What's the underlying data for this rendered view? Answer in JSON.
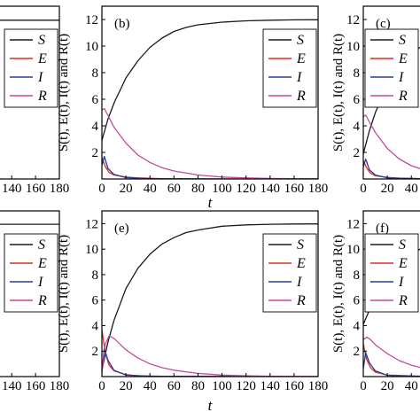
{
  "colors": {
    "S": "#1a1a1a",
    "E": "#d7301f",
    "I": "#2b3a9a",
    "R": "#c44a9a"
  },
  "legend_labels": [
    "S",
    "E",
    "I",
    "R"
  ],
  "chart_data": [
    {
      "id": "a",
      "type": "line",
      "panel_label": "",
      "partial": "left-cropped",
      "xlabel": "",
      "ylabel": "",
      "xlim": [
        0,
        180
      ],
      "ylim": [
        0,
        13
      ],
      "xticks": [
        140,
        160,
        180
      ],
      "yticks": [],
      "series": [
        {
          "name": "S",
          "x": [
            0,
            180
          ],
          "y": [
            11.95,
            11.95
          ]
        }
      ]
    },
    {
      "id": "b",
      "type": "line",
      "panel_label": "(b)",
      "xlabel": "t",
      "ylabel": "S(t), E(t), I(t) and R(t)",
      "xlim": [
        0,
        180
      ],
      "ylim": [
        0,
        13
      ],
      "xticks": [
        0,
        20,
        40,
        60,
        80,
        100,
        120,
        140,
        160,
        180
      ],
      "yticks": [
        2,
        4,
        6,
        8,
        10,
        12
      ],
      "series": [
        {
          "name": "S",
          "x": [
            0,
            5,
            10,
            20,
            30,
            40,
            50,
            60,
            70,
            80,
            100,
            120,
            140,
            160,
            180
          ],
          "y": [
            2.9,
            4.5,
            5.7,
            7.6,
            8.9,
            9.9,
            10.6,
            11.1,
            11.4,
            11.6,
            11.8,
            11.9,
            11.95,
            11.97,
            11.98
          ]
        },
        {
          "name": "E",
          "x": [
            0,
            3,
            6,
            10,
            20,
            30,
            50,
            80,
            120,
            180
          ],
          "y": [
            1.6,
            0.9,
            0.5,
            0.3,
            0.15,
            0.08,
            0.03,
            0.01,
            0.0,
            0.0
          ]
        },
        {
          "name": "I",
          "x": [
            0,
            2,
            5,
            10,
            20,
            40,
            80,
            180
          ],
          "y": [
            1.0,
            1.7,
            0.8,
            0.35,
            0.1,
            0.02,
            0.0,
            0.0
          ]
        },
        {
          "name": "R",
          "x": [
            0,
            2,
            5,
            10,
            20,
            30,
            40,
            50,
            60,
            80,
            100,
            120,
            140,
            160,
            180
          ],
          "y": [
            5.2,
            5.3,
            4.8,
            3.9,
            2.7,
            1.8,
            1.25,
            0.85,
            0.6,
            0.3,
            0.15,
            0.08,
            0.04,
            0.02,
            0.01
          ]
        }
      ]
    },
    {
      "id": "c",
      "type": "line",
      "panel_label": "(c)",
      "partial": "right-cropped",
      "xlabel": "",
      "ylabel": "S(t), E(t), I(t) and R(t)",
      "xlim": [
        0,
        180
      ],
      "ylim": [
        0,
        13
      ],
      "xticks": [
        0,
        20,
        40
      ],
      "yticks": [
        2,
        4,
        6,
        8,
        10,
        12
      ],
      "series": [
        {
          "name": "S",
          "x": [
            0,
            5,
            10,
            20,
            30,
            40,
            50
          ],
          "y": [
            1.9,
            3.6,
            5.0,
            7.0,
            8.4,
            9.4,
            10.1
          ]
        },
        {
          "name": "E",
          "x": [
            0,
            3,
            6,
            10,
            20,
            30,
            50
          ],
          "y": [
            1.4,
            0.8,
            0.45,
            0.25,
            0.12,
            0.06,
            0.02
          ]
        },
        {
          "name": "I",
          "x": [
            0,
            2,
            5,
            10,
            20,
            50
          ],
          "y": [
            0.9,
            1.5,
            0.7,
            0.3,
            0.08,
            0.01
          ]
        },
        {
          "name": "R",
          "x": [
            0,
            2,
            5,
            10,
            20,
            30,
            40,
            50
          ],
          "y": [
            4.7,
            4.8,
            4.3,
            3.5,
            2.3,
            1.5,
            1.0,
            0.7
          ]
        }
      ]
    },
    {
      "id": "d",
      "type": "line",
      "panel_label": "",
      "partial": "left-cropped",
      "xlabel": "",
      "ylabel": "",
      "xlim": [
        0,
        180
      ],
      "ylim": [
        0,
        13
      ],
      "xticks": [
        140,
        160,
        180
      ],
      "yticks": [],
      "series": [
        {
          "name": "S",
          "x": [
            0,
            180
          ],
          "y": [
            11.95,
            11.95
          ]
        }
      ]
    },
    {
      "id": "e",
      "type": "line",
      "panel_label": "(e)",
      "xlabel": "t",
      "ylabel": "S(t), E(t), I(t) and R(t)",
      "xlim": [
        0,
        180
      ],
      "ylim": [
        0,
        13
      ],
      "xticks": [
        0,
        20,
        40,
        60,
        80,
        100,
        120,
        140,
        160,
        180
      ],
      "yticks": [
        2,
        4,
        6,
        8,
        10,
        12
      ],
      "series": [
        {
          "name": "S",
          "x": [
            0,
            5,
            10,
            20,
            30,
            40,
            50,
            60,
            70,
            80,
            100,
            120,
            140,
            160,
            180
          ],
          "y": [
            0.5,
            2.7,
            4.4,
            6.9,
            8.5,
            9.6,
            10.4,
            10.9,
            11.3,
            11.5,
            11.8,
            11.9,
            11.95,
            11.97,
            11.98
          ]
        },
        {
          "name": "E",
          "x": [
            0,
            1,
            3,
            6,
            10,
            20,
            30,
            50,
            180
          ],
          "y": [
            3.7,
            3.0,
            1.8,
            0.9,
            0.45,
            0.15,
            0.06,
            0.02,
            0.0
          ]
        },
        {
          "name": "I",
          "x": [
            0,
            2,
            5,
            10,
            20,
            40,
            180
          ],
          "y": [
            0.4,
            2.2,
            1.3,
            0.5,
            0.12,
            0.02,
            0.0
          ]
        },
        {
          "name": "R",
          "x": [
            0,
            3,
            6,
            10,
            20,
            30,
            40,
            50,
            60,
            80,
            100,
            120,
            140,
            160,
            180
          ],
          "y": [
            0.3,
            2.6,
            3.2,
            3.0,
            2.1,
            1.45,
            1.0,
            0.7,
            0.5,
            0.25,
            0.12,
            0.06,
            0.03,
            0.01,
            0.0
          ]
        }
      ]
    },
    {
      "id": "f",
      "type": "line",
      "panel_label": "(f)",
      "partial": "right-cropped",
      "xlabel": "",
      "ylabel": "S(t), E(t), I(t) and R(t)",
      "xlim": [
        0,
        180
      ],
      "ylim": [
        0,
        13
      ],
      "xticks": [
        0,
        20,
        40
      ],
      "yticks": [
        2,
        4,
        6,
        8,
        10,
        12
      ],
      "series": [
        {
          "name": "S",
          "x": [
            0,
            5,
            10,
            20,
            30,
            40,
            50
          ],
          "y": [
            4.1,
            5.2,
            6.1,
            7.6,
            8.7,
            9.5,
            10.2
          ]
        },
        {
          "name": "E",
          "x": [
            0,
            1,
            3,
            6,
            10,
            20,
            50
          ],
          "y": [
            2.6,
            2.1,
            1.3,
            0.7,
            0.35,
            0.12,
            0.02
          ]
        },
        {
          "name": "I",
          "x": [
            0,
            2,
            5,
            10,
            20,
            50
          ],
          "y": [
            0.6,
            1.9,
            1.1,
            0.45,
            0.1,
            0.01
          ]
        },
        {
          "name": "R",
          "x": [
            0,
            3,
            6,
            10,
            20,
            30,
            40,
            50
          ],
          "y": [
            2.9,
            3.1,
            2.9,
            2.5,
            1.8,
            1.25,
            0.9,
            0.65
          ]
        }
      ]
    }
  ]
}
